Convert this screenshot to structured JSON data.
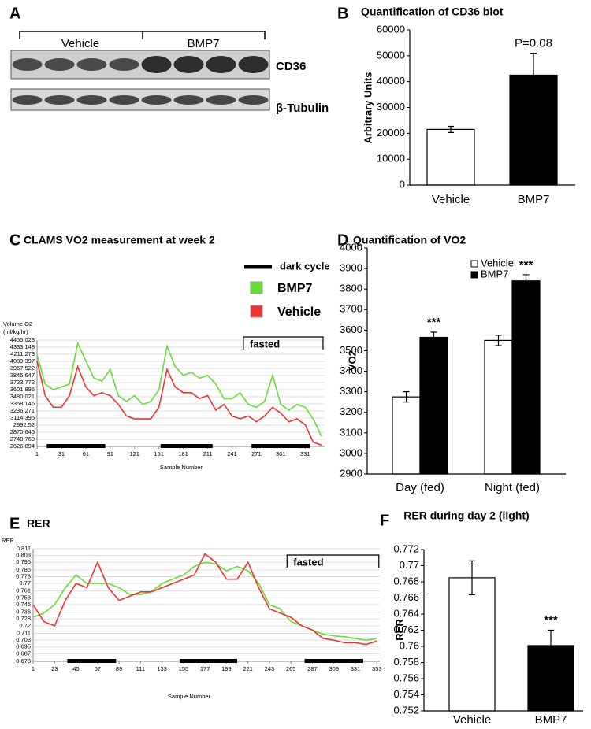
{
  "blot": {
    "panel": "A",
    "groups": [
      "Vehicle",
      "BMP7"
    ],
    "bands": [
      "CD36",
      "β-Tubulin"
    ]
  },
  "chart_data": [
    {
      "type": "bar",
      "panel": "B",
      "title": "Quantification of CD36 blot",
      "ylabel": "Arbitrary Units",
      "categories": [
        "Vehicle",
        "BMP7"
      ],
      "values": [
        21500,
        42500
      ],
      "errors": [
        1200,
        8500
      ],
      "colors": [
        "#ffffff",
        "#000000"
      ],
      "ylim": [
        0,
        60000
      ],
      "yticks": [
        0,
        10000,
        20000,
        30000,
        40000,
        50000,
        60000
      ],
      "annotations": [
        {
          "text": "P=0.08",
          "index": 1
        }
      ]
    },
    {
      "type": "line",
      "panel": "C",
      "title": "CLAMS VO2 measurement at week 2",
      "ylabel_lines": [
        "Volume O2",
        "(ml/kg/hr)"
      ],
      "xlabel": "Sample Number",
      "x": [
        1,
        11,
        21,
        31,
        41,
        51,
        61,
        71,
        81,
        91,
        101,
        111,
        121,
        131,
        141,
        151,
        161,
        171,
        181,
        191,
        201,
        211,
        221,
        231,
        241,
        251,
        261,
        271,
        281,
        291,
        301,
        311,
        321,
        331,
        341,
        351
      ],
      "series": [
        {
          "name": "BMP7",
          "color": "#66dd33",
          "values": [
            4200,
            3700,
            3600,
            3650,
            3700,
            4400,
            4100,
            3800,
            3750,
            3950,
            3500,
            3400,
            3500,
            3350,
            3400,
            3600,
            4350,
            4000,
            3850,
            3900,
            3800,
            3850,
            3700,
            3450,
            3450,
            3550,
            3350,
            3300,
            3400,
            3850,
            3350,
            3250,
            3350,
            3300,
            3100,
            2800
          ]
        },
        {
          "name": "Vehicle",
          "color": "#ee3333",
          "values": [
            4100,
            3500,
            3300,
            3300,
            3500,
            4000,
            3650,
            3500,
            3550,
            3500,
            3350,
            3150,
            3100,
            3100,
            3100,
            3300,
            3950,
            3650,
            3550,
            3550,
            3450,
            3500,
            3250,
            3350,
            3150,
            3100,
            3150,
            3050,
            3150,
            3300,
            3200,
            3050,
            3100,
            3000,
            2700,
            2650
          ]
        }
      ],
      "dark_cycle": {
        "name": "dark cycle",
        "ranges": [
          [
            13,
            85
          ],
          [
            153,
            217
          ],
          [
            265,
            337
          ]
        ]
      },
      "annotations": [
        {
          "text": "fasted",
          "x": [
            255,
            353
          ]
        }
      ],
      "xlim": [
        1,
        355
      ],
      "xticks": [
        1,
        31,
        61,
        91,
        121,
        151,
        181,
        211,
        241,
        271,
        301,
        331
      ],
      "ylim": [
        2626.894,
        4455.023
      ],
      "yticks": [
        2626.894,
        2748.769,
        2870.645,
        2992.52,
        3114.395,
        3236.271,
        3358.146,
        3480.021,
        3601.896,
        3723.772,
        3845.647,
        3967.522,
        4089.397,
        4211.273,
        4333.148,
        4455.023
      ],
      "grid": true
    },
    {
      "type": "bar",
      "panel": "D",
      "title": "Quantification of VO2",
      "ylabel": "VO2",
      "categories": [
        "Day (fed)",
        "Night (fed)"
      ],
      "series": [
        {
          "name": "Vehicle",
          "color": "#ffffff",
          "values": [
            3275,
            3550
          ],
          "errors": [
            25,
            25
          ]
        },
        {
          "name": "BMP7",
          "color": "#000000",
          "values": [
            3565,
            3840
          ],
          "errors": [
            25,
            30
          ]
        }
      ],
      "ylim": [
        2900,
        4000
      ],
      "yticks": [
        2900,
        3000,
        3100,
        3200,
        3300,
        3400,
        3500,
        3600,
        3700,
        3800,
        3900,
        4000
      ],
      "annotations": [
        {
          "text": "***",
          "series": 1,
          "index": 0
        },
        {
          "text": "***",
          "series": 1,
          "index": 1
        }
      ]
    },
    {
      "type": "line",
      "panel": "E",
      "title": "RER",
      "ylabel_lines": [
        "RER"
      ],
      "xlabel": "Sample Number",
      "x": [
        1,
        12,
        23,
        34,
        45,
        56,
        67,
        78,
        89,
        100,
        111,
        122,
        133,
        144,
        155,
        166,
        177,
        188,
        199,
        210,
        221,
        232,
        243,
        254,
        265,
        276,
        287,
        298,
        309,
        320,
        331,
        342,
        353
      ],
      "series": [
        {
          "color": "#66dd33",
          "values": [
            0.73,
            0.735,
            0.745,
            0.765,
            0.78,
            0.77,
            0.77,
            0.77,
            0.765,
            0.757,
            0.757,
            0.76,
            0.77,
            0.775,
            0.78,
            0.79,
            0.795,
            0.793,
            0.785,
            0.79,
            0.785,
            0.77,
            0.745,
            0.74,
            0.725,
            0.72,
            0.715,
            0.71,
            0.708,
            0.707,
            0.705,
            0.703,
            0.705
          ]
        },
        {
          "color": "#ee3333",
          "values": [
            0.745,
            0.725,
            0.72,
            0.75,
            0.77,
            0.765,
            0.795,
            0.765,
            0.75,
            0.755,
            0.76,
            0.76,
            0.765,
            0.77,
            0.775,
            0.78,
            0.805,
            0.795,
            0.775,
            0.775,
            0.795,
            0.765,
            0.74,
            0.735,
            0.73,
            0.72,
            0.715,
            0.705,
            0.703,
            0.7,
            0.7,
            0.698,
            0.702
          ]
        }
      ],
      "dark_cycle": {
        "ranges": [
          [
            36,
            86
          ],
          [
            151,
            210
          ],
          [
            279,
            339
          ]
        ]
      },
      "annotations": [
        {
          "text": "fasted",
          "x": [
            261,
            355
          ]
        }
      ],
      "xlim": [
        1,
        356
      ],
      "xticks": [
        1,
        23,
        45,
        67,
        89,
        111,
        133,
        155,
        177,
        199,
        221,
        243,
        265,
        287,
        309,
        331,
        353
      ],
      "ylim": [
        0.678,
        0.811
      ],
      "yticks": [
        0.678,
        0.687,
        0.695,
        0.703,
        0.711,
        0.72,
        0.728,
        0.736,
        0.745,
        0.753,
        0.761,
        0.77,
        0.778,
        0.786,
        0.795,
        0.803,
        0.811
      ],
      "grid": true
    },
    {
      "type": "bar",
      "panel": "F",
      "title": "RER during day 2 (light)",
      "ylabel": "RER",
      "categories": [
        "Vehicle",
        "BMP7"
      ],
      "values": [
        0.7685,
        0.7601
      ],
      "errors": [
        0.0021,
        0.0019
      ],
      "colors": [
        "#ffffff",
        "#000000"
      ],
      "ylim": [
        0.752,
        0.772
      ],
      "yticks": [
        0.752,
        0.754,
        0.756,
        0.758,
        0.76,
        0.762,
        0.764,
        0.766,
        0.768,
        0.77,
        0.772
      ],
      "annotations": [
        {
          "text": "***",
          "index": 1
        }
      ]
    }
  ]
}
